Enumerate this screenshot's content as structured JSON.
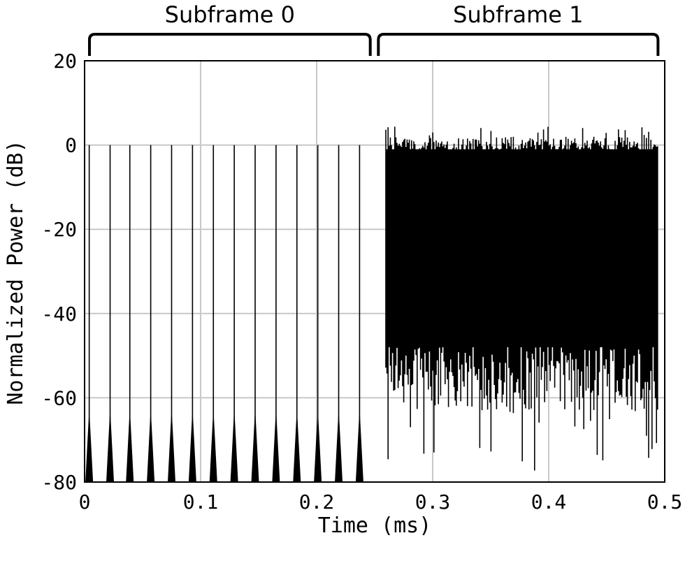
{
  "chart_data": {
    "type": "line",
    "xlabel": "Time (ms)",
    "ylabel": "Normalized Power (dB)",
    "xlim": [
      0,
      0.5
    ],
    "ylim": [
      -80,
      20
    ],
    "grid": true,
    "xticks": [
      "0",
      "0.1",
      "0.2",
      "0.3",
      "0.4",
      "0.5"
    ],
    "xtick_values": [
      0,
      0.1,
      0.2,
      0.3,
      0.4,
      0.5
    ],
    "yticks": [
      "20",
      "0",
      "-20",
      "-40",
      "-60",
      "-80"
    ],
    "ytick_values": [
      20,
      0,
      -20,
      -40,
      -60,
      -80
    ],
    "annotations": [
      {
        "text": "Subframe 0",
        "x_start": 0.003,
        "x_end": 0.245
      },
      {
        "text": "Subframe 1",
        "x_start": 0.252,
        "x_end": 0.493
      }
    ],
    "series": [
      {
        "segment": "subframe-0",
        "description_values": "periodic impulse peaks",
        "peak_times": [
          0.004,
          0.022,
          0.039,
          0.057,
          0.075,
          0.093,
          0.111,
          0.129,
          0.147,
          0.165,
          0.183,
          0.201,
          0.219,
          0.237
        ],
        "peak_value": 0,
        "base_value": -80
      },
      {
        "segment": "subframe-1",
        "x_range": [
          0.25,
          0.5
        ],
        "upper_envelope_mean": 0,
        "upper_envelope_max": 5,
        "lower_envelope_typical": -55,
        "lower_envelope_min": -80
      }
    ]
  },
  "colors": {
    "signal": "#000000",
    "grid": "#c8c8c8",
    "background": "#ffffff"
  }
}
